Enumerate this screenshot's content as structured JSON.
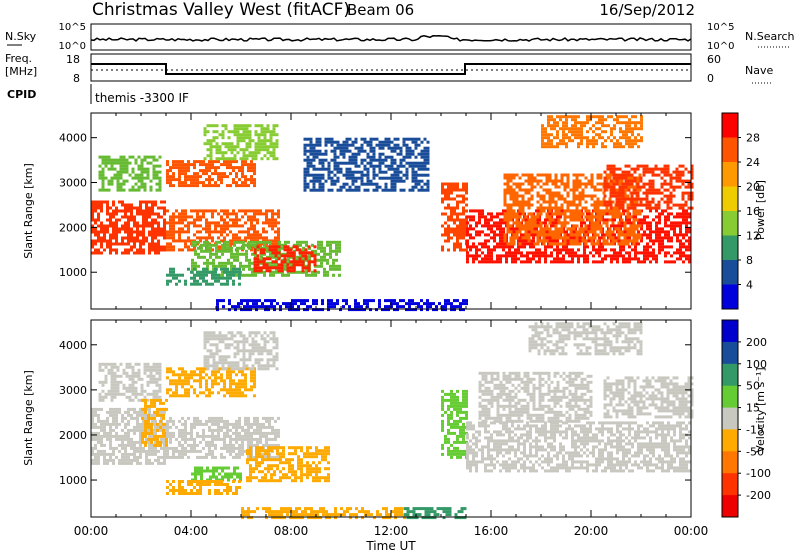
{
  "header": {
    "title": "Christmas Valley West (fitACF)",
    "beam": "Beam 06",
    "date": "16/Sep/2012"
  },
  "top_panels": {
    "nsky_label": "N.Sky",
    "nsky_ticks": [
      "10^5",
      "10^0"
    ],
    "nsearch_label": "N.Search",
    "nsearch_ticks": [
      "10^5",
      "10^0"
    ],
    "freq_label_1": "Freq.",
    "freq_label_2": "[MHz]",
    "freq_ticks": [
      "18",
      "8"
    ],
    "nave_label": "Nave",
    "nave_ticks": [
      "60",
      "0"
    ],
    "cpid_label": "CPID",
    "cpid_text": "themis -3300 IF"
  },
  "chart_data": [
    {
      "type": "heatmap",
      "panel": "power",
      "ylabel": "Slant Range [km]",
      "xlabel": "Time UT",
      "x_ticks": [
        "00:00",
        "04:00",
        "08:00",
        "12:00",
        "16:00",
        "20:00",
        "00:00"
      ],
      "x_range_hours": [
        0,
        24
      ],
      "y_ticks": [
        1000,
        2000,
        3000,
        4000
      ],
      "y_range_km": [
        180,
        4550
      ],
      "colorbar": {
        "label": "Power [dB]",
        "ticks": [
          "28",
          "24",
          "20",
          "16",
          "12",
          "8",
          "4"
        ],
        "colors": [
          "#ff0000",
          "#ff5500",
          "#ff9900",
          "#eecc00",
          "#88cc33",
          "#339966",
          "#1a4d99",
          "#0000dd"
        ]
      },
      "regions": [
        {
          "t0": 0.0,
          "t1": 2.9,
          "r0": 1400,
          "r1": 2600,
          "color": "#ff3300"
        },
        {
          "t0": 0.3,
          "t1": 2.8,
          "r0": 2800,
          "r1": 3600,
          "color": "#66bb33"
        },
        {
          "t0": 3.0,
          "t1": 7.5,
          "r0": 1500,
          "r1": 2400,
          "color": "#ff5500"
        },
        {
          "t0": 3.0,
          "t1": 6.5,
          "r0": 2900,
          "r1": 3500,
          "color": "#ff5500"
        },
        {
          "t0": 4.5,
          "t1": 7.5,
          "r0": 3500,
          "r1": 4300,
          "color": "#88cc33"
        },
        {
          "t0": 4.0,
          "t1": 10.0,
          "r0": 900,
          "r1": 1700,
          "color": "#66bb33"
        },
        {
          "t0": 6.5,
          "t1": 9.0,
          "r0": 1000,
          "r1": 1600,
          "color": "#ff2200"
        },
        {
          "t0": 3.0,
          "t1": 6.0,
          "r0": 700,
          "r1": 1100,
          "color": "#339966"
        },
        {
          "t0": 8.5,
          "t1": 13.5,
          "r0": 2800,
          "r1": 4000,
          "color": "#1a4d99"
        },
        {
          "t0": 14.0,
          "t1": 15.0,
          "r0": 1500,
          "r1": 3000,
          "color": "#ff4400"
        },
        {
          "t0": 15.0,
          "t1": 24.0,
          "r0": 1200,
          "r1": 2400,
          "color": "#ff1100"
        },
        {
          "t0": 16.5,
          "t1": 22.0,
          "r0": 1600,
          "r1": 3200,
          "color": "#ff6600"
        },
        {
          "t0": 20.5,
          "t1": 24.0,
          "r0": 2400,
          "r1": 3400,
          "color": "#ff3300"
        },
        {
          "t0": 18.0,
          "t1": 22.0,
          "r0": 3800,
          "r1": 4500,
          "color": "#ff7700"
        },
        {
          "t0": 5.0,
          "t1": 15.0,
          "r0": 180,
          "r1": 400,
          "color": "#0000dd"
        }
      ]
    },
    {
      "type": "heatmap",
      "panel": "velocity",
      "ylabel": "Slant Range [km]",
      "xlabel": "Time UT",
      "x_ticks": [
        "00:00",
        "04:00",
        "08:00",
        "12:00",
        "16:00",
        "20:00",
        "00:00"
      ],
      "x_range_hours": [
        0,
        24
      ],
      "y_ticks": [
        1000,
        2000,
        3000,
        4000
      ],
      "y_range_km": [
        180,
        4550
      ],
      "colorbar": {
        "label": "Velocity [m s⁻¹]",
        "ticks": [
          "200",
          "100",
          "50",
          "15",
          "-15",
          "-50",
          "-100",
          "-200"
        ],
        "colors": [
          "#0000cc",
          "#1a4d99",
          "#339966",
          "#66cc33",
          "#c8c8c0",
          "#ffaa00",
          "#ff7700",
          "#ff3300",
          "#ee0000"
        ]
      },
      "regions": [
        {
          "t0": 0.0,
          "t1": 2.9,
          "r0": 1400,
          "r1": 2600,
          "color": "#c8c8c0"
        },
        {
          "t0": 0.3,
          "t1": 2.8,
          "r0": 2800,
          "r1": 3600,
          "color": "#c8c8c0"
        },
        {
          "t0": 2.0,
          "t1": 3.0,
          "r0": 1800,
          "r1": 2800,
          "color": "#ffaa00"
        },
        {
          "t0": 3.0,
          "t1": 7.5,
          "r0": 1500,
          "r1": 2400,
          "color": "#c8c8c0"
        },
        {
          "t0": 3.0,
          "t1": 6.5,
          "r0": 2900,
          "r1": 3500,
          "color": "#ffaa00"
        },
        {
          "t0": 4.5,
          "t1": 7.5,
          "r0": 3500,
          "r1": 4300,
          "color": "#c8c8c0"
        },
        {
          "t0": 4.0,
          "t1": 6.0,
          "r0": 1000,
          "r1": 1300,
          "color": "#66cc33"
        },
        {
          "t0": 6.2,
          "t1": 9.5,
          "r0": 1000,
          "r1": 1750,
          "color": "#ffaa00"
        },
        {
          "t0": 3.0,
          "t1": 6.0,
          "r0": 700,
          "r1": 1000,
          "color": "#ffaa00"
        },
        {
          "t0": 14.0,
          "t1": 15.0,
          "r0": 1500,
          "r1": 3000,
          "color": "#66cc33"
        },
        {
          "t0": 15.0,
          "t1": 24.0,
          "r0": 1200,
          "r1": 2300,
          "color": "#c8c8c0"
        },
        {
          "t0": 15.5,
          "t1": 20.0,
          "r0": 2300,
          "r1": 3400,
          "color": "#c8c8c0"
        },
        {
          "t0": 20.5,
          "t1": 24.0,
          "r0": 2400,
          "r1": 3300,
          "color": "#c8c8c0"
        },
        {
          "t0": 17.5,
          "t1": 22.0,
          "r0": 3800,
          "r1": 4500,
          "color": "#c8c8c0"
        },
        {
          "t0": 6.0,
          "t1": 12.5,
          "r0": 180,
          "r1": 400,
          "color": "#ffaa00"
        },
        {
          "t0": 12.5,
          "t1": 15.0,
          "r0": 180,
          "r1": 400,
          "color": "#339966"
        }
      ]
    }
  ]
}
